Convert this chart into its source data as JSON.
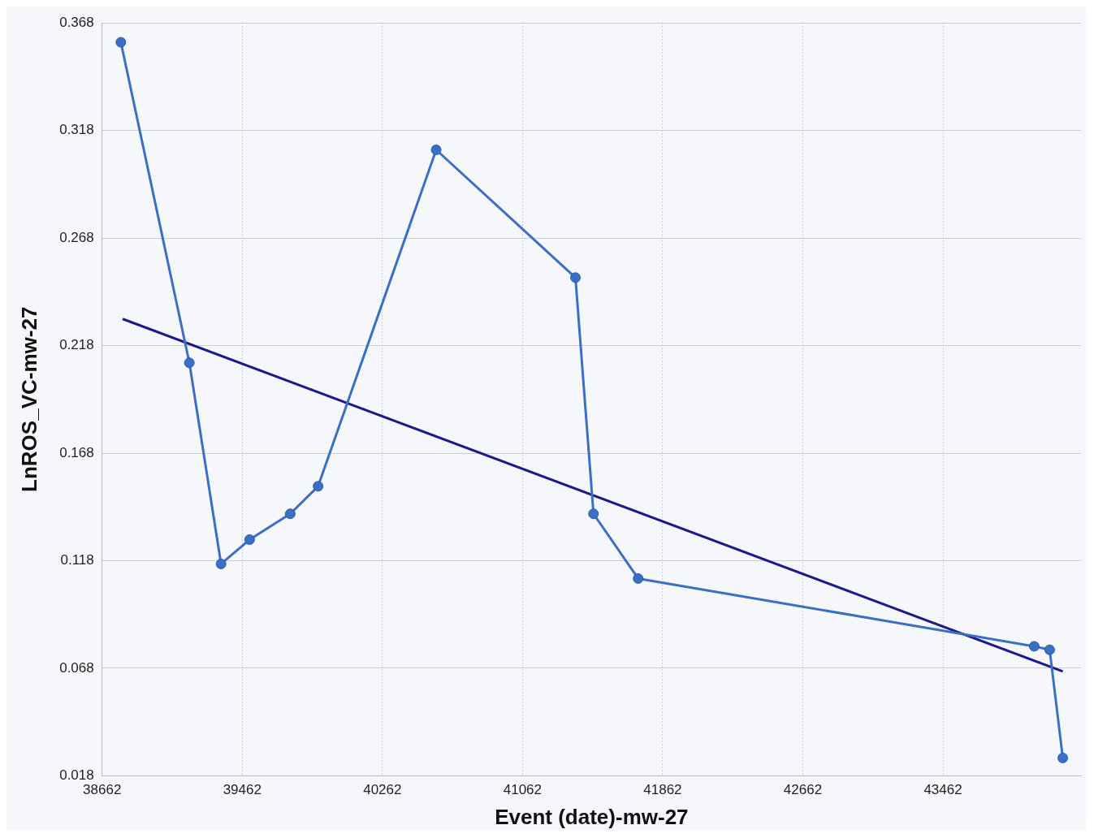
{
  "chart_data": {
    "type": "line",
    "xlabel": "Event (date)-mw-27",
    "ylabel": "LnROS_VC-mw-27",
    "xlim": [
      38662,
      44250
    ],
    "xticks": [
      38662,
      39462,
      40262,
      41062,
      41862,
      42662,
      43462
    ],
    "ylim": [
      0.018,
      0.368
    ],
    "yticks": [
      0.018,
      0.068,
      0.118,
      0.168,
      0.218,
      0.268,
      0.318,
      0.368
    ],
    "grid": true,
    "legend": false,
    "marker": "circle",
    "line_style": "solid",
    "series": [
      {
        "color": "#3a6fc4",
        "x": [
          38769,
          39160,
          39341,
          39504,
          39736,
          39895,
          40569,
          41364,
          41467,
          41722,
          43983,
          44071,
          44146
        ],
        "values": [
          0.359,
          0.21,
          0.1165,
          0.1278,
          0.1398,
          0.1526,
          0.309,
          0.2496,
          0.1398,
          0.1097,
          0.0782,
          0.0766,
          0.0263
        ]
      },
      {
        "type": "line",
        "marker": "none",
        "color": "#1c1a8a",
        "x": [
          38779,
          44146
        ],
        "values": [
          0.2304,
          0.0665
        ]
      }
    ]
  }
}
